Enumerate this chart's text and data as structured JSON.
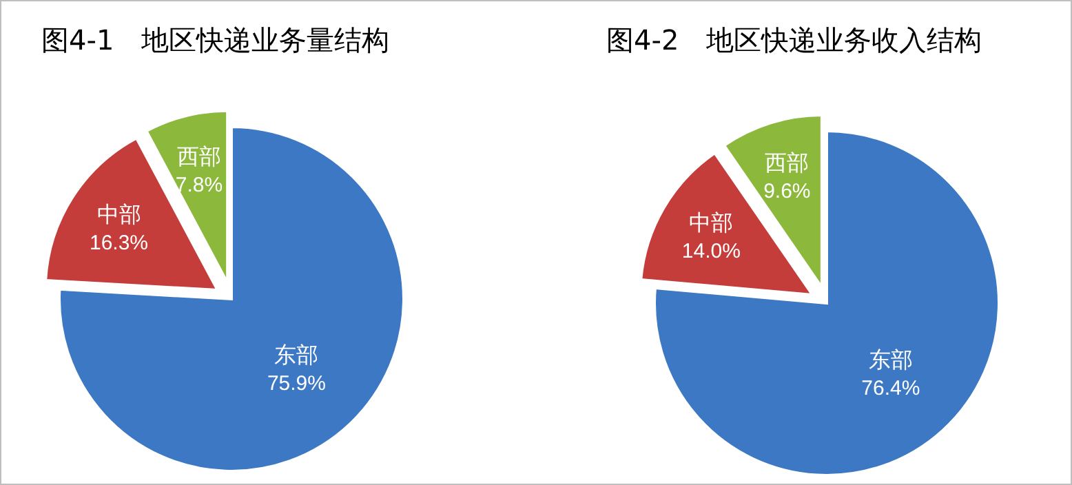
{
  "chart_data": [
    {
      "type": "pie",
      "title": "图4-1　地区快递业务量结构",
      "categories": [
        "东部",
        "中部",
        "西部"
      ],
      "values": [
        75.9,
        16.3,
        7.8
      ],
      "colors": [
        "#3d78c4",
        "#c43d3a",
        "#8cb83c"
      ],
      "value_labels": [
        "75.9%",
        "16.3%",
        "7.8%"
      ]
    },
    {
      "type": "pie",
      "title": "图4-2　地区快递业务收入结构",
      "categories": [
        "东部",
        "中部",
        "西部"
      ],
      "values": [
        76.4,
        14.0,
        9.6
      ],
      "colors": [
        "#3d78c4",
        "#c43d3a",
        "#8cb83c"
      ],
      "value_labels": [
        "76.4%",
        "14.0%",
        "9.6%"
      ]
    }
  ]
}
